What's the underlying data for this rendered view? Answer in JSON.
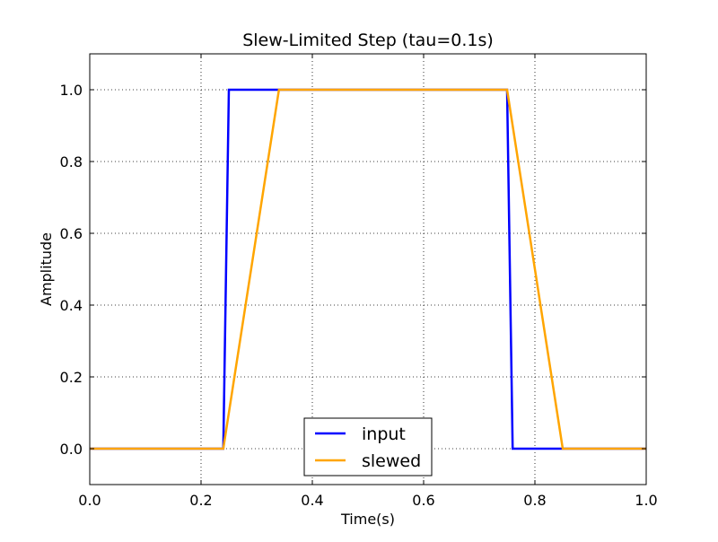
{
  "chart_data": {
    "type": "line",
    "title": "Slew-Limited Step (tau=0.1s)",
    "xlabel": "Time(s)",
    "ylabel": "Amplitude",
    "xlim": [
      0.0,
      1.0
    ],
    "ylim": [
      -0.1,
      1.1
    ],
    "xticks": [
      "0.0",
      "0.2",
      "0.4",
      "0.6",
      "0.8",
      "1.0"
    ],
    "yticks": [
      "0.0",
      "0.2",
      "0.4",
      "0.6",
      "0.8",
      "1.0"
    ],
    "grid": true,
    "legend_position": "bottom-center",
    "series": [
      {
        "name": "input",
        "color": "#0000ff",
        "x": [
          0.0,
          0.24,
          0.25,
          0.75,
          0.76,
          1.0
        ],
        "y": [
          0.0,
          0.0,
          1.0,
          1.0,
          0.0,
          0.0
        ]
      },
      {
        "name": "slewed",
        "color": "#ffa500",
        "x": [
          0.0,
          0.24,
          0.34,
          0.75,
          0.85,
          1.0
        ],
        "y": [
          0.0,
          0.0,
          1.0,
          1.0,
          0.0,
          0.0
        ]
      }
    ]
  }
}
